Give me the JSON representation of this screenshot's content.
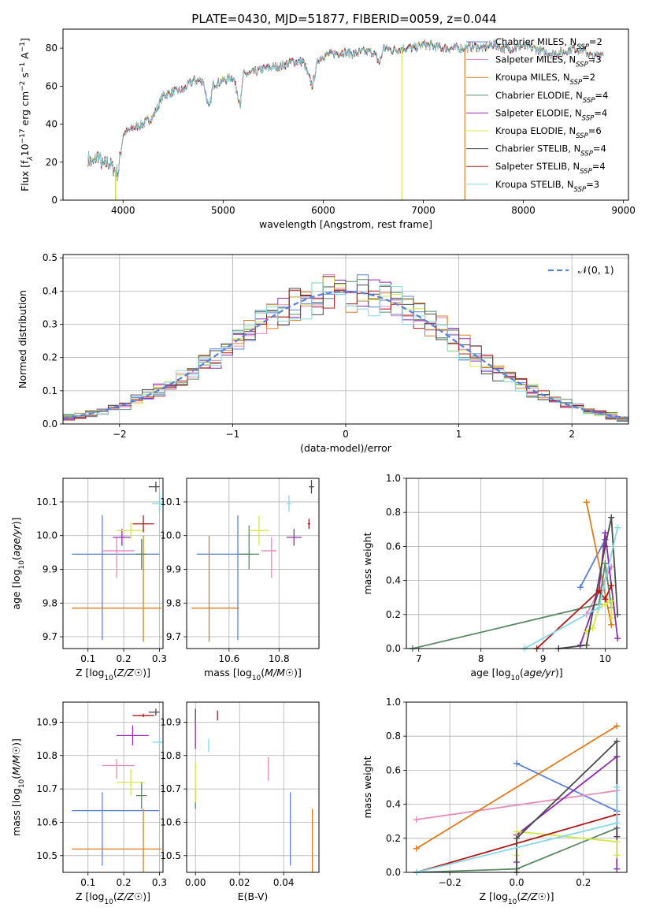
{
  "title": "PLATE=0430, MJD=51877, FIBERID=0059, z=0.044",
  "colors": {
    "chabrier_miles": "#5b82d8",
    "salpeter_miles": "#e68bb8",
    "kroupa_miles": "#e07c1f",
    "chabrier_elodie": "#5a8a64",
    "salpeter_elodie": "#8e2bb0",
    "kroupa_elodie": "#d4e84a",
    "chabrier_stelib": "#4a4a4a",
    "salpeter_stelib": "#b01818",
    "kroupa_stelib": "#86d8e6",
    "gaussian": "#5b82d8",
    "grid": "#b0b0b0"
  },
  "chart_data": [
    {
      "type": "line",
      "id": "spectrum",
      "title": "PLATE=0430, MJD=51877, FIBERID=0059, z=0.044",
      "xlabel": "wavelength [Angstrom, rest frame]",
      "ylabel_parts": [
        "Flux [f",
        "λ",
        "10",
        "−17",
        " erg cm",
        "−2",
        " s",
        "−1",
        " A",
        "−1",
        "]"
      ],
      "xlim": [
        3400,
        9050
      ],
      "ylim": [
        0,
        90
      ],
      "xticks": [
        4000,
        5000,
        6000,
        7000,
        8000,
        9000
      ],
      "yticks": [
        0,
        20,
        40,
        60,
        80
      ],
      "grid": false,
      "legend_position": "top-right",
      "spectrum_anchors": {
        "x": [
          3650,
          3700,
          3750,
          3800,
          3850,
          3900,
          3950,
          4000,
          4100,
          4200,
          4300,
          4400,
          4500,
          4600,
          4700,
          4800,
          4860,
          4900,
          5000,
          5100,
          5175,
          5200,
          5300,
          5400,
          5500,
          5600,
          5700,
          5800,
          5890,
          5950,
          6000,
          6100,
          6200,
          6300,
          6400,
          6500,
          6563,
          6600,
          6700,
          6800,
          6900,
          7000,
          7100,
          7200,
          7300,
          7400,
          7500,
          7600,
          7700,
          7800,
          7900,
          8000,
          8100,
          8200,
          8300,
          8400,
          8500,
          8600,
          8700,
          8800
        ],
        "y": [
          22,
          19,
          24,
          18,
          20,
          17,
          14,
          35,
          38,
          40,
          44,
          55,
          57,
          58,
          63,
          63,
          47,
          61,
          63,
          65,
          50,
          66,
          67,
          69,
          70,
          71,
          73,
          73,
          60,
          74,
          76,
          77,
          78,
          77,
          78,
          78,
          72,
          80,
          79,
          80,
          80,
          82,
          81,
          80,
          80,
          80,
          81,
          80,
          82,
          80,
          80,
          81,
          80,
          78,
          77,
          78,
          80,
          79,
          75,
          78
        ]
      },
      "drops": [
        {
          "series": "Kroupa MILES",
          "x": 3925
        },
        {
          "series": "Kroupa ELODIE",
          "x": 3925
        },
        {
          "series": "Kroupa ELODIE",
          "x": 6785
        },
        {
          "series": "Kroupa MILES",
          "x": 7415
        }
      ],
      "series": [
        {
          "label": "Chabrier MILES",
          "nssp": "2",
          "color": "#5b82d8"
        },
        {
          "label": "Salpeter MILES",
          "nssp": "3",
          "color": "#e68bb8"
        },
        {
          "label": "Kroupa MILES",
          "nssp": "2",
          "color": "#e07c1f"
        },
        {
          "label": "Chabrier ELODIE",
          "nssp": "4",
          "color": "#5a8a64"
        },
        {
          "label": "Salpeter ELODIE",
          "nssp": "4",
          "color": "#8e2bb0"
        },
        {
          "label": "Kroupa ELODIE",
          "nssp": "6",
          "color": "#d4e84a"
        },
        {
          "label": "Chabrier STELIB",
          "nssp": "4",
          "color": "#4a4a4a"
        },
        {
          "label": "Salpeter STELIB",
          "nssp": "4",
          "color": "#b01818"
        },
        {
          "label": "Kroupa STELIB",
          "nssp": "3",
          "color": "#86d8e6"
        }
      ]
    },
    {
      "type": "histogram",
      "id": "residuals",
      "xlabel": "(data-model)/error",
      "ylabel": "Normed distribution",
      "xlim": [
        -2.5,
        2.5
      ],
      "ylim": [
        0,
        0.51
      ],
      "xticks": [
        -2,
        -1,
        0,
        1,
        2
      ],
      "yticks": [
        0.0,
        0.1,
        0.2,
        0.3,
        0.4,
        0.5
      ],
      "grid": true,
      "bin_width": 0.1,
      "legend": "𝒩(0, 1)",
      "legend_position": "top-right"
    },
    {
      "type": "scatter",
      "id": "z_age",
      "xlabel": "Z [log10(Z/Z☉)]",
      "ylabel": "age  [log10(age/yr)]",
      "xlim": [
        0.03,
        0.31
      ],
      "ylim": [
        9.665,
        10.17
      ],
      "xticks": [
        0.1,
        0.2,
        0.3
      ],
      "yticks": [
        9.7,
        9.8,
        9.9,
        10.0,
        10.1
      ],
      "grid": true,
      "points": [
        {
          "s": 0,
          "x": 0.14,
          "y": 9.945,
          "xerr": [
            0.085,
            0.16
          ],
          "yerr": [
            0.255,
            0.115
          ]
        },
        {
          "s": 1,
          "x": 0.18,
          "y": 9.955,
          "xerr": [
            0.04,
            0.05
          ],
          "yerr": [
            0.08,
            0.04
          ]
        },
        {
          "s": 2,
          "x": 0.255,
          "y": 9.785,
          "xerr": [
            0.2,
            0.05
          ],
          "yerr": [
            0.1,
            0.215
          ]
        },
        {
          "s": 3,
          "x": 0.25,
          "y": 9.945,
          "xerr": [
            0.015,
            0.015
          ],
          "yerr": [
            0.045,
            0.045
          ]
        },
        {
          "s": 4,
          "x": 0.195,
          "y": 9.995,
          "xerr": [
            0.025,
            0.025
          ],
          "yerr": [
            0.025,
            0.025
          ]
        },
        {
          "s": 5,
          "x": 0.22,
          "y": 10.015,
          "xerr": [
            0.04,
            0.04
          ],
          "yerr": [
            0.025,
            0.025
          ]
        },
        {
          "s": 6,
          "x": 0.29,
          "y": 10.145,
          "xerr": [
            0.02,
            0.01
          ],
          "yerr": [
            0.015,
            0.015
          ]
        },
        {
          "s": 7,
          "x": 0.255,
          "y": 10.035,
          "xerr": [
            0.03,
            0.03
          ],
          "yerr": [
            0.025,
            0.025
          ]
        },
        {
          "s": 8,
          "x": 0.3,
          "y": 10.095,
          "xerr": [
            0.02,
            0.02
          ],
          "yerr": [
            0.03,
            0.03
          ]
        }
      ]
    },
    {
      "type": "scatter",
      "id": "mass_age",
      "xlabel": "mass [log10(M/M☉)]",
      "ylabel": "",
      "xlim": [
        10.43,
        10.96
      ],
      "ylim": [
        9.665,
        10.17
      ],
      "xticks": [
        10.6,
        10.8
      ],
      "yticks": [
        9.7,
        9.8,
        9.9,
        10.0,
        10.1
      ],
      "grid": true,
      "points": [
        {
          "s": 0,
          "x": 10.635,
          "y": 9.945,
          "xerr": [
            0.165,
            0.055
          ],
          "yerr": [
            0.255,
            0.115
          ]
        },
        {
          "s": 1,
          "x": 10.77,
          "y": 9.955,
          "xerr": [
            0.04,
            0.02
          ],
          "yerr": [
            0.08,
            0.04
          ]
        },
        {
          "s": 2,
          "x": 10.52,
          "y": 9.785,
          "xerr": [
            0.07,
            0.12
          ],
          "yerr": [
            0.1,
            0.215
          ]
        },
        {
          "s": 3,
          "x": 10.68,
          "y": 9.945,
          "xerr": [
            0.04,
            0.04
          ],
          "yerr": [
            0.045,
            0.085
          ]
        },
        {
          "s": 4,
          "x": 10.86,
          "y": 9.995,
          "xerr": [
            0.03,
            0.03
          ],
          "yerr": [
            0.025,
            0.025
          ]
        },
        {
          "s": 5,
          "x": 10.72,
          "y": 10.015,
          "xerr": [
            0.04,
            0.04
          ],
          "yerr": [
            0.045,
            0.045
          ]
        },
        {
          "s": 6,
          "x": 10.93,
          "y": 10.145,
          "xerr": [
            0.01,
            0.01
          ],
          "yerr": [
            0.02,
            0.02
          ]
        },
        {
          "s": 7,
          "x": 10.92,
          "y": 10.035,
          "xerr": [
            0.005,
            0.005
          ],
          "yerr": [
            0.015,
            0.015
          ]
        },
        {
          "s": 8,
          "x": 10.84,
          "y": 10.095,
          "xerr": [
            0.01,
            0.01
          ],
          "yerr": [
            0.025,
            0.025
          ]
        }
      ]
    },
    {
      "type": "line",
      "id": "age_weight",
      "xlabel": "age  [log10(age/yr)]",
      "ylabel": "mass weight",
      "xlim": [
        6.8,
        10.35
      ],
      "ylim": [
        0,
        1.0
      ],
      "xticks": [
        7,
        8,
        9,
        10
      ],
      "yticks": [
        0.0,
        0.2,
        0.4,
        0.6,
        0.8,
        1.0
      ],
      "grid": true,
      "series": [
        {
          "s": 0,
          "x": [
            9.6,
            10.0
          ],
          "y": [
            0.36,
            0.64
          ]
        },
        {
          "s": 1,
          "x": [
            9.7,
            10.1
          ],
          "y": [
            0.2,
            0.48
          ]
        },
        {
          "s": 2,
          "x": [
            9.7,
            10.1
          ],
          "y": [
            0.86,
            0.14
          ]
        },
        {
          "s": 3,
          "x": [
            6.9,
            9.9,
            10.0,
            10.1
          ],
          "y": [
            0.0,
            0.26,
            0.5,
            0.24
          ]
        },
        {
          "s": 4,
          "x": [
            9.6,
            9.9,
            10.0,
            10.2
          ],
          "y": [
            0.02,
            0.34,
            0.68,
            0.06
          ]
        },
        {
          "s": 5,
          "x": [
            9.7,
            9.8,
            9.9,
            10.0,
            10.1,
            10.1
          ],
          "y": [
            0.1,
            0.12,
            0.24,
            0.26,
            0.28,
            0.18
          ]
        },
        {
          "s": 6,
          "x": [
            9.25,
            9.7,
            10.0,
            10.1,
            10.2
          ],
          "y": [
            0.0,
            0.02,
            0.6,
            0.77,
            0.2
          ]
        },
        {
          "s": 7,
          "x": [
            8.9,
            9.9,
            10.0,
            10.1
          ],
          "y": [
            0.0,
            0.34,
            0.29,
            0.37
          ]
        },
        {
          "s": 8,
          "x": [
            8.7,
            9.9,
            10.2
          ],
          "y": [
            0.0,
            0.24,
            0.71
          ]
        }
      ]
    },
    {
      "type": "scatter",
      "id": "z_mass",
      "xlabel": "Z [log10(Z/Z☉)]",
      "ylabel": "mass [log10(M/M☉)]",
      "xlim": [
        0.03,
        0.31
      ],
      "ylim": [
        10.45,
        10.96
      ],
      "xticks": [
        0.1,
        0.2,
        0.3
      ],
      "yticks": [
        10.5,
        10.6,
        10.7,
        10.8,
        10.9
      ],
      "grid": true,
      "points": [
        {
          "s": 0,
          "x": 0.14,
          "y": 10.635,
          "xerr": [
            0.085,
            0.16
          ],
          "yerr": [
            0.165,
            0.055
          ]
        },
        {
          "s": 1,
          "x": 0.18,
          "y": 10.77,
          "xerr": [
            0.04,
            0.05
          ],
          "yerr": [
            0.04,
            0.02
          ]
        },
        {
          "s": 2,
          "x": 0.255,
          "y": 10.52,
          "xerr": [
            0.2,
            0.05
          ],
          "yerr": [
            0.07,
            0.12
          ]
        },
        {
          "s": 3,
          "x": 0.25,
          "y": 10.68,
          "xerr": [
            0.015,
            0.015
          ],
          "yerr": [
            0.04,
            0.04
          ]
        },
        {
          "s": 4,
          "x": 0.225,
          "y": 10.86,
          "xerr": [
            0.045,
            0.045
          ],
          "yerr": [
            0.03,
            0.03
          ]
        },
        {
          "s": 5,
          "x": 0.22,
          "y": 10.72,
          "xerr": [
            0.04,
            0.04
          ],
          "yerr": [
            0.04,
            0.04
          ]
        },
        {
          "s": 6,
          "x": 0.29,
          "y": 10.93,
          "xerr": [
            0.02,
            0.01
          ],
          "yerr": [
            0.01,
            0.01
          ]
        },
        {
          "s": 7,
          "x": 0.255,
          "y": 10.92,
          "xerr": [
            0.03,
            0.03
          ],
          "yerr": [
            0.005,
            0.005
          ]
        },
        {
          "s": 8,
          "x": 0.3,
          "y": 10.84,
          "xerr": [
            0.02,
            0.02
          ],
          "yerr": [
            0.01,
            0.01
          ]
        }
      ]
    },
    {
      "type": "scatter",
      "id": "ebv_mass",
      "xlabel": "E(B-V)",
      "ylabel": "",
      "xlim": [
        -0.004,
        0.056
      ],
      "ylim": [
        10.45,
        10.96
      ],
      "xticks": [
        0.0,
        0.02,
        0.04
      ],
      "yticks": [
        10.5,
        10.6,
        10.7,
        10.8,
        10.9
      ],
      "grid": true,
      "points": [
        {
          "s": 0,
          "x": 0.043,
          "y": 10.58,
          "xerr": [
            0,
            0
          ],
          "yerr": [
            0.11,
            0.11
          ]
        },
        {
          "s": 1,
          "x": 0.033,
          "y": 10.76,
          "xerr": [
            0,
            0
          ],
          "yerr": [
            0.035,
            0.035
          ]
        },
        {
          "s": 2,
          "x": 0.053,
          "y": 10.52,
          "xerr": [
            0,
            0
          ],
          "yerr": [
            0.07,
            0.12
          ]
        },
        {
          "s": 3,
          "x": 0.0,
          "y": 10.67,
          "xerr": [
            0,
            0
          ],
          "yerr": [
            0.03,
            0.03
          ]
        },
        {
          "s": 4,
          "x": 0.0,
          "y": 10.86,
          "xerr": [
            0,
            0
          ],
          "yerr": [
            0.04,
            0.04
          ]
        },
        {
          "s": 5,
          "x": 0.0,
          "y": 10.72,
          "xerr": [
            0,
            0
          ],
          "yerr": [
            0.06,
            0.06
          ]
        },
        {
          "s": 6,
          "x": 0.0,
          "y": 10.92,
          "xerr": [
            0,
            0
          ],
          "yerr": [
            0.02,
            0.02
          ]
        },
        {
          "s": 7,
          "x": 0.01,
          "y": 10.92,
          "xerr": [
            0,
            0
          ],
          "yerr": [
            0.015,
            0.015
          ]
        },
        {
          "s": 8,
          "x": 0.006,
          "y": 10.83,
          "xerr": [
            0,
            0
          ],
          "yerr": [
            0.02,
            0.02
          ]
        }
      ]
    },
    {
      "type": "line",
      "id": "z_weight",
      "xlabel": "Z [log10(Z/Z☉)]",
      "ylabel": "mass weight",
      "xlim": [
        -0.33,
        0.33
      ],
      "ylim": [
        0,
        1.0
      ],
      "xticks": [
        -0.2,
        0.0,
        0.2
      ],
      "yticks": [
        0.0,
        0.2,
        0.4,
        0.6,
        0.8,
        1.0
      ],
      "grid": true,
      "series": [
        {
          "s": 0,
          "x": [
            0.0,
            0.3
          ],
          "y": [
            0.64,
            0.36
          ]
        },
        {
          "s": 1,
          "x": [
            -0.3,
            0.3
          ],
          "y": [
            0.31,
            0.48
          ]
        },
        {
          "s": 2,
          "x": [
            -0.3,
            0.3
          ],
          "y": [
            0.14,
            0.86
          ]
        },
        {
          "s": 3,
          "x": [
            -0.3,
            0.0,
            0.3
          ],
          "y": [
            0.0,
            0.02,
            0.26
          ]
        },
        {
          "s": 4,
          "x": [
            0.0,
            0.0,
            0.3,
            0.3
          ],
          "y": [
            0.06,
            0.22,
            0.68,
            0.02
          ]
        },
        {
          "s": 5,
          "x": [
            0.0,
            0.0,
            0.3,
            0.3
          ],
          "y": [
            0.1,
            0.24,
            0.18,
            0.1
          ]
        },
        {
          "s": 6,
          "x": [
            0.0,
            0.0,
            0.3,
            0.3
          ],
          "y": [
            0.0,
            0.2,
            0.77,
            0.21
          ]
        },
        {
          "s": 7,
          "x": [
            -0.3,
            0.3
          ],
          "y": [
            0.0,
            0.34
          ]
        },
        {
          "s": 8,
          "x": [
            -0.3,
            0.3,
            0.3
          ],
          "y": [
            0.0,
            0.29,
            0.5
          ]
        }
      ]
    }
  ]
}
